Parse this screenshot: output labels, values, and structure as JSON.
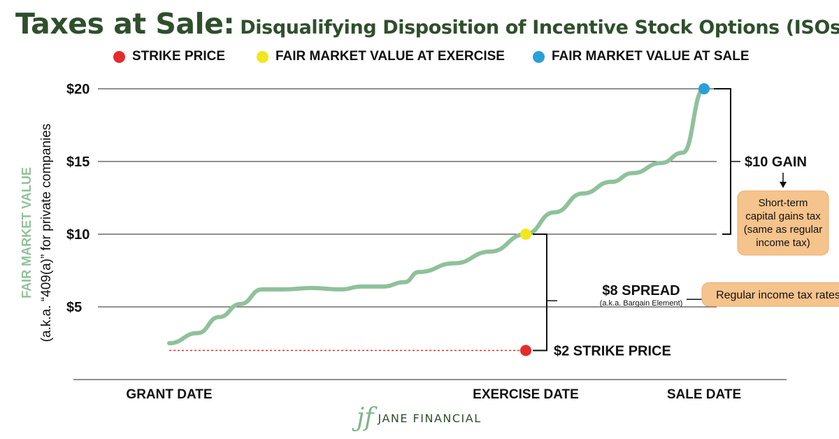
{
  "title": {
    "main": "Taxes at Sale:",
    "sub": "Disqualifying Disposition of Incentive Stock Options (ISOs)"
  },
  "legend": [
    {
      "label": "STRIKE PRICE",
      "color": "#e52b2b"
    },
    {
      "label": "FAIR MARKET VALUE AT EXERCISE",
      "color": "#f0e81a"
    },
    {
      "label": "FAIR MARKET VALUE AT SALE",
      "color": "#2a9fd8"
    }
  ],
  "chart_data": {
    "type": "line",
    "ylabel_main": "FAIR MARKET VALUE",
    "ylabel_sub": "(a.k.a. “409(a)” for private companies",
    "ylim": [
      0,
      20
    ],
    "y_ticks": [
      {
        "value": 5,
        "label": "$5"
      },
      {
        "value": 10,
        "label": "$10"
      },
      {
        "value": 15,
        "label": "$15"
      },
      {
        "value": 20,
        "label": "$20"
      }
    ],
    "x_labels": [
      {
        "x": 0.1,
        "label": "GRANT DATE"
      },
      {
        "x": 0.6,
        "label": "EXERCISE DATE"
      },
      {
        "x": 0.85,
        "label": "SALE DATE"
      }
    ],
    "series": [
      {
        "color": "#8fc19a",
        "points": [
          [
            0.1,
            2.5
          ],
          [
            0.14,
            3.2
          ],
          [
            0.17,
            4.3
          ],
          [
            0.2,
            5.2
          ],
          [
            0.23,
            6.2
          ],
          [
            0.26,
            6.2
          ],
          [
            0.3,
            6.3
          ],
          [
            0.34,
            6.2
          ],
          [
            0.37,
            6.4
          ],
          [
            0.4,
            6.4
          ],
          [
            0.43,
            6.7
          ],
          [
            0.45,
            7.4
          ],
          [
            0.5,
            8.0
          ],
          [
            0.55,
            8.8
          ],
          [
            0.6,
            10.0
          ],
          [
            0.64,
            11.5
          ],
          [
            0.68,
            12.8
          ],
          [
            0.72,
            13.6
          ],
          [
            0.75,
            14.2
          ],
          [
            0.79,
            14.9
          ],
          [
            0.82,
            15.6
          ],
          [
            0.85,
            20.0
          ]
        ]
      }
    ],
    "markers": [
      {
        "name": "strike-price",
        "x": 0.6,
        "y": 2,
        "color": "#e52b2b"
      },
      {
        "name": "fmv-at-exercise",
        "x": 0.6,
        "y": 10,
        "color": "#f0e81a"
      },
      {
        "name": "fmv-at-sale",
        "x": 0.85,
        "y": 20,
        "color": "#2a9fd8"
      }
    ],
    "annotations": {
      "strike_label": "$2 STRIKE PRICE",
      "spread_label": "$8 SPREAD",
      "spread_sub": "(a.k.a. Bargain Element)",
      "spread_tax": "Regular income tax rates",
      "gain_label": "$10 GAIN",
      "gain_tax": [
        "Short-term",
        "capital gains tax",
        "(same as regular",
        "income tax)"
      ]
    },
    "grid": true
  },
  "logo": {
    "mark": "jf",
    "text": "JANE FINANCIAL"
  }
}
